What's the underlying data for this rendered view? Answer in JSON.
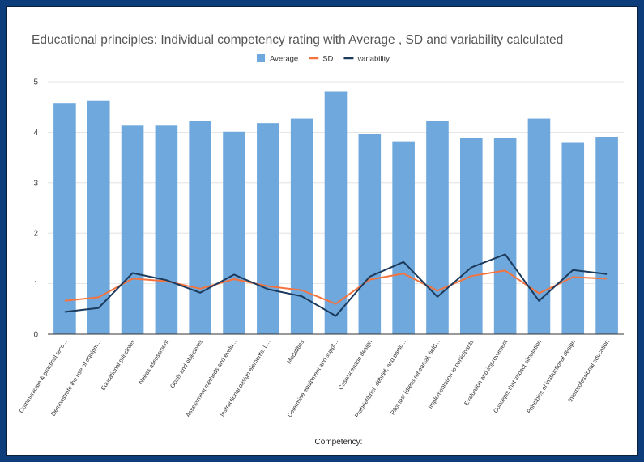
{
  "chart_data": {
    "type": "bar",
    "title": "Educational principles: Individual competency rating with Average , SD and variability calculated",
    "xlabel": "Competency:",
    "ylabel": "",
    "ylim": [
      0,
      5
    ],
    "yticks": [
      "0",
      "1",
      "2",
      "3",
      "4",
      "5"
    ],
    "grid": true,
    "legend_position": "top",
    "categories": [
      "Communicate & practical reco...",
      "Demonstrate the use of equipm...",
      "Educational principles",
      "Needs assessment",
      "Goals and objectives",
      "Assessment methods and evalu...",
      "Instructional design elements: L...",
      "Modalities",
      "Determine equipment and suppl...",
      "Case/scenario design",
      "Prebrief/brief, debrief, and partic...",
      "Pilot test (dress rehearsal, field...",
      "Implementation to participants",
      "Evaluation and improvement",
      "Concepts that impact simulation",
      "Principles of instructional design",
      "Interprofessional education"
    ],
    "series": [
      {
        "name": "Average",
        "type": "bar",
        "color": "#6fa8dc",
        "values": [
          4.58,
          4.62,
          4.13,
          4.13,
          4.22,
          4.01,
          4.18,
          4.27,
          4.8,
          3.96,
          3.82,
          4.22,
          3.88,
          3.88,
          4.27,
          3.79,
          3.91
        ]
      },
      {
        "name": "SD",
        "type": "line",
        "color": "#f4733e",
        "values": [
          0.66,
          0.73,
          1.1,
          1.05,
          0.9,
          1.09,
          0.95,
          0.87,
          0.6,
          1.08,
          1.2,
          0.86,
          1.15,
          1.26,
          0.81,
          1.13,
          1.1
        ]
      },
      {
        "name": "variability",
        "type": "line",
        "color": "#1b3a5c",
        "values": [
          0.44,
          0.52,
          1.21,
          1.07,
          0.82,
          1.18,
          0.89,
          0.75,
          0.36,
          1.14,
          1.43,
          0.74,
          1.32,
          1.58,
          0.66,
          1.27,
          1.19
        ]
      }
    ]
  }
}
